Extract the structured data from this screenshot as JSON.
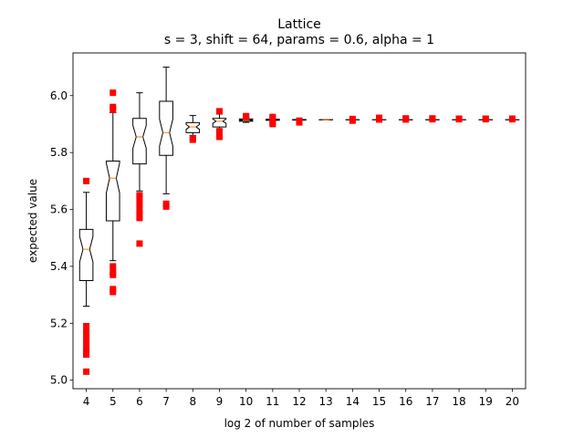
{
  "chart_data": {
    "type": "boxplot",
    "title": "Lattice",
    "subtitle": "s = 3, shift = 64, params = 0.6, alpha = 1",
    "xlabel": "log 2 of number of samples",
    "ylabel": "expected value",
    "ylim": [
      4.97,
      6.15
    ],
    "yticks": [
      5.0,
      5.2,
      5.4,
      5.6,
      5.8,
      6.0
    ],
    "ytick_labels": [
      "5.0",
      "5.2",
      "5.4",
      "5.6",
      "5.8",
      "6.0"
    ],
    "categories": [
      "4",
      "5",
      "6",
      "7",
      "8",
      "9",
      "10",
      "11",
      "12",
      "13",
      "14",
      "15",
      "16",
      "17",
      "18",
      "19",
      "20"
    ],
    "notched": true,
    "box_color": "#000000",
    "median_color": "#ff7f0e",
    "outlier_color": "#ff0000",
    "boxes": [
      {
        "x": "4",
        "whislo": 5.26,
        "q1": 5.35,
        "med": 5.46,
        "q3": 5.53,
        "whishi": 5.66,
        "fliers": [
          5.7,
          5.19,
          5.17,
          5.15,
          5.13,
          5.11,
          5.1,
          5.09,
          5.03
        ]
      },
      {
        "x": "5",
        "whislo": 5.42,
        "q1": 5.56,
        "med": 5.71,
        "q3": 5.77,
        "whishi": 5.94,
        "fliers": [
          6.01,
          5.96,
          5.95,
          5.4,
          5.38,
          5.37,
          5.32,
          5.31
        ]
      },
      {
        "x": "6",
        "whislo": 5.665,
        "q1": 5.76,
        "med": 5.855,
        "q3": 5.92,
        "whishi": 6.01,
        "fliers": [
          5.65,
          5.64,
          5.62,
          5.6,
          5.58,
          5.57,
          5.48
        ]
      },
      {
        "x": "7",
        "whislo": 5.655,
        "q1": 5.79,
        "med": 5.87,
        "q3": 5.98,
        "whishi": 6.1,
        "fliers": [
          5.62,
          5.61
        ]
      },
      {
        "x": "8",
        "whislo": 5.86,
        "q1": 5.87,
        "med": 5.89,
        "q3": 5.905,
        "whishi": 5.93,
        "fliers": [
          5.85,
          5.845
        ]
      },
      {
        "x": "9",
        "whislo": 5.88,
        "q1": 5.89,
        "med": 5.91,
        "q3": 5.92,
        "whishi": 5.935,
        "fliers": [
          5.945,
          5.875,
          5.865,
          5.855
        ]
      },
      {
        "x": "10",
        "whislo": 5.906,
        "q1": 5.91,
        "med": 5.914,
        "q3": 5.918,
        "whishi": 5.923,
        "fliers": [
          5.928,
          5.925
        ]
      },
      {
        "x": "11",
        "whislo": 5.911,
        "q1": 5.913,
        "med": 5.915,
        "q3": 5.917,
        "whishi": 5.919,
        "fliers": [
          5.925,
          5.92,
          5.905,
          5.9
        ]
      },
      {
        "x": "12",
        "whislo": 5.913,
        "q1": 5.914,
        "med": 5.915,
        "q3": 5.916,
        "whishi": 5.917,
        "fliers": [
          5.912,
          5.906
        ]
      },
      {
        "x": "13",
        "whislo": 5.9143,
        "q1": 5.9146,
        "med": 5.915,
        "q3": 5.9154,
        "whishi": 5.9157,
        "fliers": []
      },
      {
        "x": "14",
        "whislo": 5.9143,
        "q1": 5.9146,
        "med": 5.915,
        "q3": 5.9154,
        "whishi": 5.9157,
        "fliers": [
          5.918,
          5.912
        ]
      },
      {
        "x": "15",
        "whislo": 5.9143,
        "q1": 5.9146,
        "med": 5.915,
        "q3": 5.9154,
        "whishi": 5.9157,
        "fliers": [
          5.922,
          5.916
        ]
      },
      {
        "x": "16",
        "whislo": 5.9143,
        "q1": 5.9146,
        "med": 5.915,
        "q3": 5.9154,
        "whishi": 5.9157,
        "fliers": [
          5.92,
          5.916
        ]
      },
      {
        "x": "17",
        "whislo": 5.9143,
        "q1": 5.9146,
        "med": 5.915,
        "q3": 5.9154,
        "whishi": 5.9157,
        "fliers": [
          5.92,
          5.917
        ]
      },
      {
        "x": "18",
        "whislo": 5.9143,
        "q1": 5.9146,
        "med": 5.915,
        "q3": 5.9154,
        "whishi": 5.9157,
        "fliers": [
          5.919,
          5.917
        ]
      },
      {
        "x": "19",
        "whislo": 5.9143,
        "q1": 5.9146,
        "med": 5.915,
        "q3": 5.9154,
        "whishi": 5.9157,
        "fliers": [
          5.919,
          5.917
        ]
      },
      {
        "x": "20",
        "whislo": 5.9143,
        "q1": 5.9146,
        "med": 5.915,
        "q3": 5.9154,
        "whishi": 5.9157,
        "fliers": [
          5.919,
          5.917
        ]
      }
    ],
    "grid": false,
    "legend": "none"
  }
}
